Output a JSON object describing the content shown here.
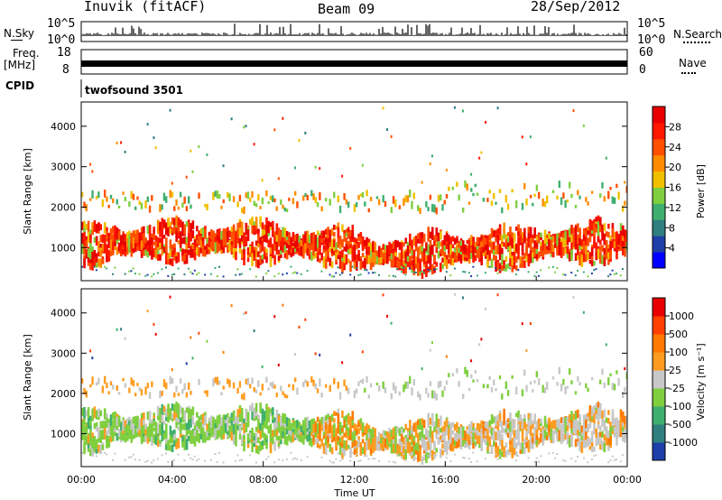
{
  "header": {
    "station": "Inuvik (fitACF)",
    "beam": "Beam 09",
    "date": "28/Sep/2012"
  },
  "strips": {
    "nsky_label": "N.Sky",
    "nsky_ticks": [
      "10^5",
      "10^0"
    ],
    "nsearch_label": "N.Search",
    "nsearch_ticks": [
      "10^5",
      "10^0"
    ],
    "freq_label": "Freq.",
    "freq_unit": "[MHz]",
    "freq_ticks": [
      "18",
      "8"
    ],
    "nave_label": "Nave",
    "nave_ticks": [
      "60",
      "0"
    ],
    "cpid_label": "CPID",
    "cpid_value": "twofsound 3501"
  },
  "colors": {
    "power_scale": [
      "#0000ff",
      "#1f3fa8",
      "#2f7f7f",
      "#3faf6f",
      "#7fcf3f",
      "#f0c000",
      "#ff8c00",
      "#ff5000",
      "#ff1800",
      "#e80000"
    ],
    "velocity_scale": [
      "#1f3fa8",
      "#2f7f7f",
      "#3faf6f",
      "#7fcf3f",
      "#c8c8c8",
      "#ff9c20",
      "#ff7a00",
      "#ff4000",
      "#e80000"
    ]
  },
  "chart_data": [
    {
      "type": "heatmap",
      "name": "power",
      "ylabel": "Slant Range [km]",
      "yticks": [
        "4000",
        "3000",
        "2000",
        "1000"
      ],
      "ylim": [
        180,
        4600
      ],
      "xlim": [
        0,
        24
      ],
      "colorbar_label": "Power [dB]",
      "colorbar_ticks": [
        "28",
        "24",
        "20",
        "16",
        "12",
        "8",
        "4"
      ],
      "clim": [
        0,
        32
      ]
    },
    {
      "type": "heatmap",
      "name": "velocity",
      "ylabel": "Slant Range [km]",
      "yticks": [
        "4000",
        "3000",
        "2000",
        "1000"
      ],
      "ylim": [
        180,
        4600
      ],
      "xlim": [
        0,
        24
      ],
      "colorbar_label": "Velocity [m s⁻¹]",
      "colorbar_ticks": [
        "1000",
        "500",
        "100",
        "25",
        "-25",
        "-100",
        "-500",
        "-1000"
      ]
    }
  ],
  "xaxis": {
    "ticks": [
      "00:00",
      "04:00",
      "08:00",
      "12:00",
      "16:00",
      "20:00",
      "00:00"
    ],
    "label": "Time UT"
  }
}
